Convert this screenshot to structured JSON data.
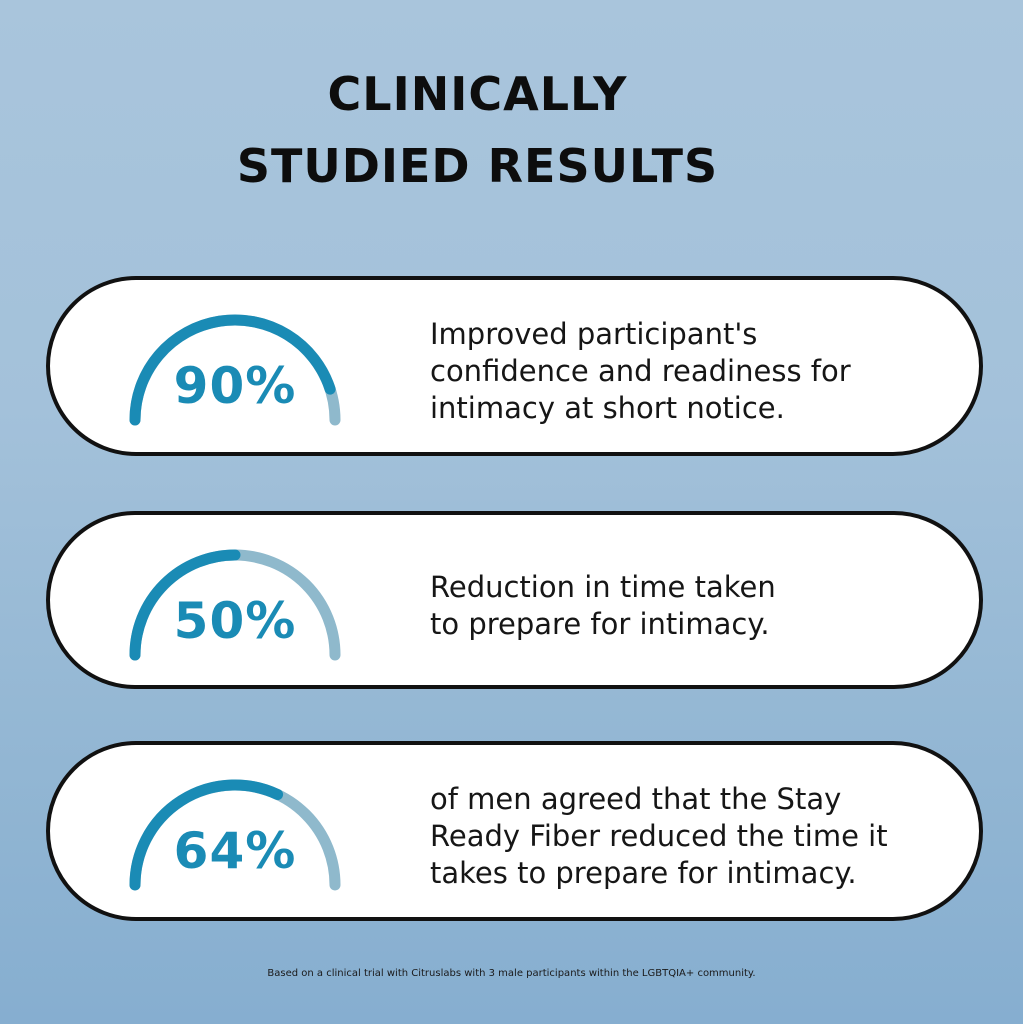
{
  "title": {
    "line1": "CLINICALLY",
    "line2": "STUDIED RESULTS"
  },
  "stats": [
    {
      "percent_label": "90%",
      "value": 0.9,
      "lines": [
        "Improved participant's",
        "confidence and readiness for",
        "intimacy at short notice."
      ]
    },
    {
      "percent_label": "50%",
      "value": 0.5,
      "lines": [
        "Reduction in time taken",
        "to prepare for intimacy."
      ]
    },
    {
      "percent_label": "64%",
      "value": 0.64,
      "lines": [
        "of men agreed that the Stay",
        "Ready Fiber reduced the time it",
        "takes to prepare for intimacy."
      ]
    }
  ],
  "footnote": "Based on a clinical trial with Citruslabs with 3 male participants within the LGBTQIA+ community.",
  "colors": {
    "gauge_fill": "#1a8bb5",
    "gauge_track": "#8fb9cc",
    "percent_text": "#1a8bb5"
  }
}
